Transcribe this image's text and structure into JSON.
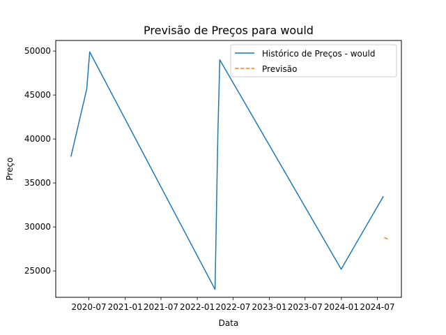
{
  "chart_data": {
    "type": "line",
    "title": "Previsão de Preços para would",
    "xlabel": "Data",
    "ylabel": "Preço",
    "x_axis": {
      "kind": "date",
      "range": [
        "2020-01-15",
        "2024-10-31"
      ],
      "ticks": [
        "2020-07",
        "2021-01",
        "2021-07",
        "2022-01",
        "2022-07",
        "2023-01",
        "2023-07",
        "2024-01",
        "2024-07"
      ]
    },
    "y_axis": {
      "range": [
        22000,
        51200
      ],
      "ticks": [
        25000,
        30000,
        35000,
        40000,
        45000,
        50000
      ]
    },
    "grid": false,
    "legend": {
      "placement": "top-right"
    },
    "series": [
      {
        "name": "Histórico de Preços - would",
        "color": "#1f77b4",
        "style": "solid",
        "points": [
          {
            "x": "2020-04-01",
            "y": 38000
          },
          {
            "x": "2020-06-20",
            "y": 45700
          },
          {
            "x": "2020-07-05",
            "y": 49900
          },
          {
            "x": "2022-04-01",
            "y": 22900
          },
          {
            "x": "2022-04-15",
            "y": 40500
          },
          {
            "x": "2022-04-25",
            "y": 49000
          },
          {
            "x": "2023-12-31",
            "y": 25200
          },
          {
            "x": "2024-08-01",
            "y": 33500
          }
        ]
      },
      {
        "name": "Previsão",
        "color": "#ff7f0e",
        "style": "dashed",
        "points": [
          {
            "x": "2024-08-05",
            "y": 28800
          },
          {
            "x": "2024-08-25",
            "y": 28600
          }
        ]
      }
    ]
  }
}
